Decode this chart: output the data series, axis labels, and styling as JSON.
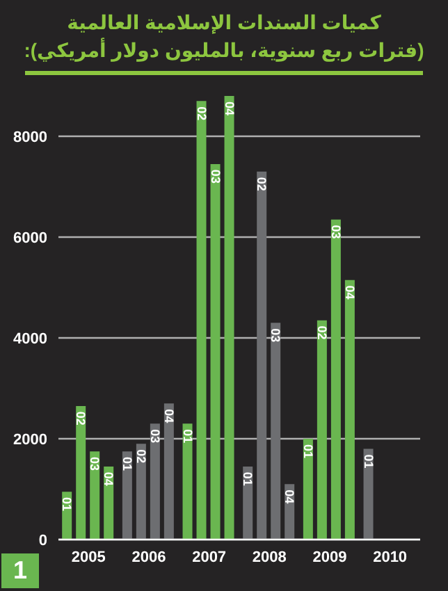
{
  "chart_data": {
    "type": "bar",
    "title": "كميات السندات الإسلامية العالمية",
    "subtitle": "(فترات ربع سنوية، بالمليون دولار أمريكي):",
    "categories": [
      "2005",
      "2006",
      "2007",
      "2008",
      "2009",
      "2010"
    ],
    "series": [
      {
        "name": "01",
        "colors": [
          "#6ab650",
          "#6d6e71",
          "#6ab650",
          "#6d6e71",
          "#6ab650",
          "#6d6e71"
        ],
        "values": [
          950,
          1750,
          2300,
          1450,
          2000,
          1800
        ]
      },
      {
        "name": "02",
        "colors": [
          "#6ab650",
          "#6d6e71",
          "#6ab650",
          "#6d6e71",
          "#6ab650",
          "#6d6e71"
        ],
        "values": [
          2650,
          1900,
          8700,
          7300,
          4350,
          null
        ]
      },
      {
        "name": "03",
        "colors": [
          "#6ab650",
          "#6d6e71",
          "#6ab650",
          "#6d6e71",
          "#6ab650",
          "#6d6e71"
        ],
        "values": [
          1750,
          2300,
          7450,
          4300,
          6350,
          null
        ]
      },
      {
        "name": "04",
        "colors": [
          "#6ab650",
          "#6d6e71",
          "#6ab650",
          "#6d6e71",
          "#6ab650",
          "#6d6e71"
        ],
        "values": [
          1450,
          2700,
          8800,
          1100,
          5150,
          null
        ]
      }
    ],
    "ylim": [
      0,
      8800
    ],
    "yticks": [
      0,
      2000,
      4000,
      6000,
      8000
    ],
    "grid": "y",
    "annotations": [
      "1"
    ]
  }
}
